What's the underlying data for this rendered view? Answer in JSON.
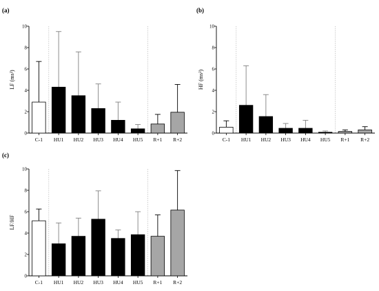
{
  "colors": {
    "C-1": "#ffffff",
    "HU": "#000000",
    "R": "#a6a6a6",
    "errorbar": "#000000",
    "errorbar_light": "#808080",
    "separator": "#c0c0c0"
  },
  "chart_data": [
    {
      "panel": "(a)",
      "type": "bar",
      "ylabel_main": "LF",
      "ylabel_unit": "(ms²)",
      "ylim": [
        0,
        10
      ],
      "yticks": [
        "0",
        "2",
        "4",
        "6",
        "8",
        "10"
      ],
      "categories": [
        "C-1",
        "HU1",
        "HU2",
        "HU3",
        "HU4",
        "HU5",
        "R+1",
        "R+2"
      ],
      "values": [
        2.9,
        4.3,
        3.5,
        2.3,
        1.2,
        0.4,
        0.85,
        1.95
      ],
      "errors": [
        3.8,
        5.2,
        4.1,
        2.3,
        1.7,
        0.4,
        0.9,
        2.6
      ],
      "separators_after": [
        0,
        5
      ]
    },
    {
      "panel": "(b)",
      "type": "bar",
      "ylabel_main": "HF",
      "ylabel_unit": "(ms²)",
      "ylim": [
        0,
        10
      ],
      "yticks": [
        "0",
        "2",
        "4",
        "6",
        "8",
        "10"
      ],
      "categories": [
        "C-1",
        "HU1",
        "HU2",
        "HU3",
        "HU4",
        "HU5",
        "R+1",
        "R+2"
      ],
      "values": [
        0.55,
        2.6,
        1.55,
        0.45,
        0.45,
        0.08,
        0.15,
        0.3
      ],
      "errors": [
        0.6,
        3.7,
        2.05,
        0.45,
        0.75,
        0.12,
        0.15,
        0.3
      ],
      "separators_after": [
        0,
        5
      ]
    },
    {
      "panel": "(c)",
      "type": "bar",
      "ylabel_main": "LF/HF",
      "ylabel_unit": "",
      "ylim": [
        0,
        10
      ],
      "yticks": [
        "0",
        "2",
        "4",
        "6",
        "8",
        "10"
      ],
      "categories": [
        "C-1",
        "HU1",
        "HU2",
        "HU3",
        "HU4",
        "HU5",
        "R+1",
        "R+2"
      ],
      "values": [
        5.15,
        3.0,
        3.7,
        5.3,
        3.5,
        3.85,
        3.7,
        6.15
      ],
      "errors": [
        1.1,
        1.95,
        1.7,
        2.65,
        0.8,
        2.15,
        2.0,
        3.7
      ],
      "separators_after": [
        0,
        5
      ]
    }
  ]
}
